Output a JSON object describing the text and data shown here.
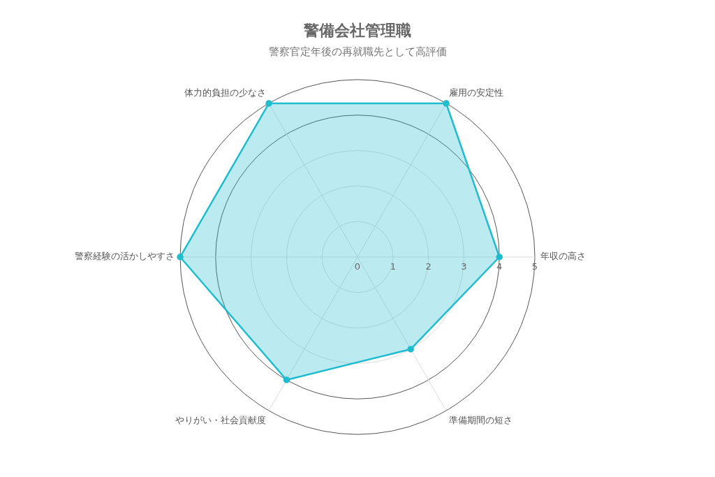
{
  "chart_data": {
    "type": "radar",
    "title": "警備会社管理職",
    "subtitle": "警察官定年後の再就職先として高評価",
    "categories": [
      "雇用の安定性",
      "年収の高さ",
      "準備期間の短さ",
      "やりがい・社会貢献度",
      "警察経験の活かしやすさ",
      "体力的負担の少なさ"
    ],
    "series": [
      {
        "color": "#1fbccf",
        "values": [
          5,
          4,
          3,
          4,
          5,
          5
        ]
      }
    ],
    "ylim": [
      0,
      5
    ],
    "yticks": [
      0,
      1,
      2,
      3,
      4,
      5
    ],
    "grid": true,
    "marker": "circle",
    "legend": false
  }
}
